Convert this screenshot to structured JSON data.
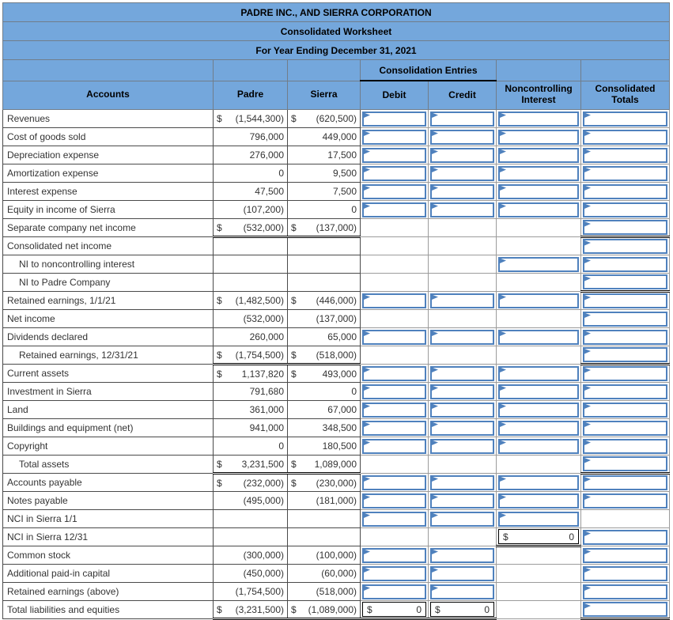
{
  "colors": {
    "header_bg": "#74a7dc",
    "box_border": "#4f81bd",
    "grid_dark": "#4a4a4a",
    "grid_light": "#9b9b9b"
  },
  "titles": [
    "PADRE INC., AND SIERRA CORPORATION",
    "Consolidated Worksheet",
    "For Year Ending December 31, 2021"
  ],
  "header": {
    "accounts": "Accounts",
    "padre": "Padre",
    "sierra": "Sierra",
    "consolidation_entries": "Consolidation Entries",
    "debit": "Debit",
    "credit": "Credit",
    "noncontrolling_interest": "Noncontrolling Interest",
    "consolidated_totals": "Consolidated Totals"
  },
  "rows": [
    {
      "label": "Revenues",
      "padre": {
        "cur": "$",
        "val": "(1,544,300)"
      },
      "sierra": {
        "cur": "$",
        "val": "(620,500)"
      },
      "debit": "box",
      "credit": "box",
      "nci": "box",
      "total": "box"
    },
    {
      "label": "Cost of goods sold",
      "padre": {
        "val": "796,000"
      },
      "sierra": {
        "val": "449,000"
      },
      "debit": "box",
      "credit": "box",
      "nci": "box",
      "total": "box"
    },
    {
      "label": "Depreciation expense",
      "padre": {
        "val": "276,000"
      },
      "sierra": {
        "val": "17,500"
      },
      "debit": "box",
      "credit": "box",
      "nci": "box",
      "total": "box"
    },
    {
      "label": "Amortization expense",
      "padre": {
        "val": "0"
      },
      "sierra": {
        "val": "9,500"
      },
      "debit": "box",
      "credit": "box",
      "nci": "box",
      "total": "box"
    },
    {
      "label": "Interest expense",
      "padre": {
        "val": "47,500"
      },
      "sierra": {
        "val": "7,500"
      },
      "debit": "box",
      "credit": "box",
      "nci": "box",
      "total": "box"
    },
    {
      "label": "Equity in income of Sierra",
      "padre": {
        "val": "(107,200)"
      },
      "sierra": {
        "val": "0"
      },
      "debit": "box",
      "credit": "box",
      "nci": "box",
      "total": "box"
    },
    {
      "label": "Separate company net income",
      "padre": {
        "cur": "$",
        "val": "(532,000)"
      },
      "sierra": {
        "cur": "$",
        "val": "(137,000)"
      },
      "subtotal": true,
      "total": "box",
      "ct_under": true
    },
    {
      "label": "Consolidated net income",
      "total": "box"
    },
    {
      "label": "NI to noncontrolling interest",
      "indent": true,
      "nci": "box",
      "total": "box"
    },
    {
      "label": "NI to Padre Company",
      "indent": true,
      "total": "box",
      "ct_under": true
    },
    {
      "label": "Retained earnings, 1/1/21",
      "padre": {
        "cur": "$",
        "val": "(1,482,500)"
      },
      "sierra": {
        "cur": "$",
        "val": "(446,000)"
      },
      "debit": "box",
      "credit": "box",
      "nci": "box",
      "total": "box"
    },
    {
      "label": "Net income",
      "padre": {
        "val": "(532,000)"
      },
      "sierra": {
        "val": "(137,000)"
      },
      "total": "box"
    },
    {
      "label": "Dividends declared",
      "padre": {
        "val": "260,000"
      },
      "sierra": {
        "val": "65,000"
      },
      "debit": "box",
      "credit": "box",
      "nci": "box",
      "total": "box"
    },
    {
      "label": "Retained earnings, 12/31/21",
      "indent": true,
      "padre": {
        "cur": "$",
        "val": "(1,754,500)"
      },
      "sierra": {
        "cur": "$",
        "val": "(518,000)"
      },
      "subtotal": true,
      "total": "box",
      "ct_under": true
    },
    {
      "label": "Current assets",
      "padre": {
        "cur": "$",
        "val": "1,137,820"
      },
      "sierra": {
        "cur": "$",
        "val": "493,000"
      },
      "debit": "box",
      "credit": "box",
      "nci": "box",
      "total": "box"
    },
    {
      "label": "Investment in Sierra",
      "padre": {
        "val": "791,680"
      },
      "sierra": {
        "val": "0"
      },
      "debit": "box",
      "credit": "box",
      "nci": "box",
      "total": "box"
    },
    {
      "label": "Land",
      "padre": {
        "val": "361,000"
      },
      "sierra": {
        "val": "67,000"
      },
      "debit": "box",
      "credit": "box",
      "nci": "box",
      "total": "box"
    },
    {
      "label": "Buildings and equipment (net)",
      "padre": {
        "val": "941,000"
      },
      "sierra": {
        "val": "348,500"
      },
      "debit": "box",
      "credit": "box",
      "nci": "box",
      "total": "box"
    },
    {
      "label": "Copyright",
      "padre": {
        "val": "0"
      },
      "sierra": {
        "val": "180,500"
      },
      "debit": "box",
      "credit": "box",
      "nci": "box",
      "total": "box"
    },
    {
      "label": "Total assets",
      "indent": true,
      "padre": {
        "cur": "$",
        "val": "3,231,500"
      },
      "sierra": {
        "cur": "$",
        "val": "1,089,000"
      },
      "subtotal": true,
      "total": "box",
      "ct_under": true
    },
    {
      "label": "Accounts payable",
      "padre": {
        "cur": "$",
        "val": "(232,000)"
      },
      "sierra": {
        "cur": "$",
        "val": "(230,000)"
      },
      "debit": "box",
      "credit": "box",
      "nci": "box",
      "total": "box"
    },
    {
      "label": "Notes payable",
      "padre": {
        "val": "(495,000)"
      },
      "sierra": {
        "val": "(181,000)"
      },
      "debit": "box",
      "credit": "box",
      "nci": "box",
      "total": "box"
    },
    {
      "label": "NCI in Sierra 1/1",
      "debit": "box",
      "credit": "box",
      "nci": "box"
    },
    {
      "label": "NCI in Sierra 12/31",
      "nci": {
        "cur": "$",
        "val": "0",
        "underline": true
      },
      "total": "box"
    },
    {
      "label": "Common stock",
      "padre": {
        "val": "(300,000)"
      },
      "sierra": {
        "val": "(100,000)"
      },
      "debit": "box",
      "credit": "box",
      "total": "box"
    },
    {
      "label": "Additional paid-in capital",
      "padre": {
        "val": "(450,000)"
      },
      "sierra": {
        "val": "(60,000)"
      },
      "debit": "box",
      "credit": "box",
      "total": "box"
    },
    {
      "label": "Retained earnings (above)",
      "padre": {
        "val": "(1,754,500)"
      },
      "sierra": {
        "val": "(518,000)"
      },
      "debit": "box",
      "credit": "box",
      "total": "box"
    },
    {
      "label": "Total liabilities and equities",
      "padre": {
        "cur": "$",
        "val": "(3,231,500)"
      },
      "sierra": {
        "cur": "$",
        "val": "(1,089,000)"
      },
      "subtotal": true,
      "debit": {
        "cur": "$",
        "val": "0",
        "underline": true
      },
      "credit": {
        "cur": "$",
        "val": "0",
        "underline": true
      },
      "total": "box",
      "ct_under": true
    }
  ]
}
